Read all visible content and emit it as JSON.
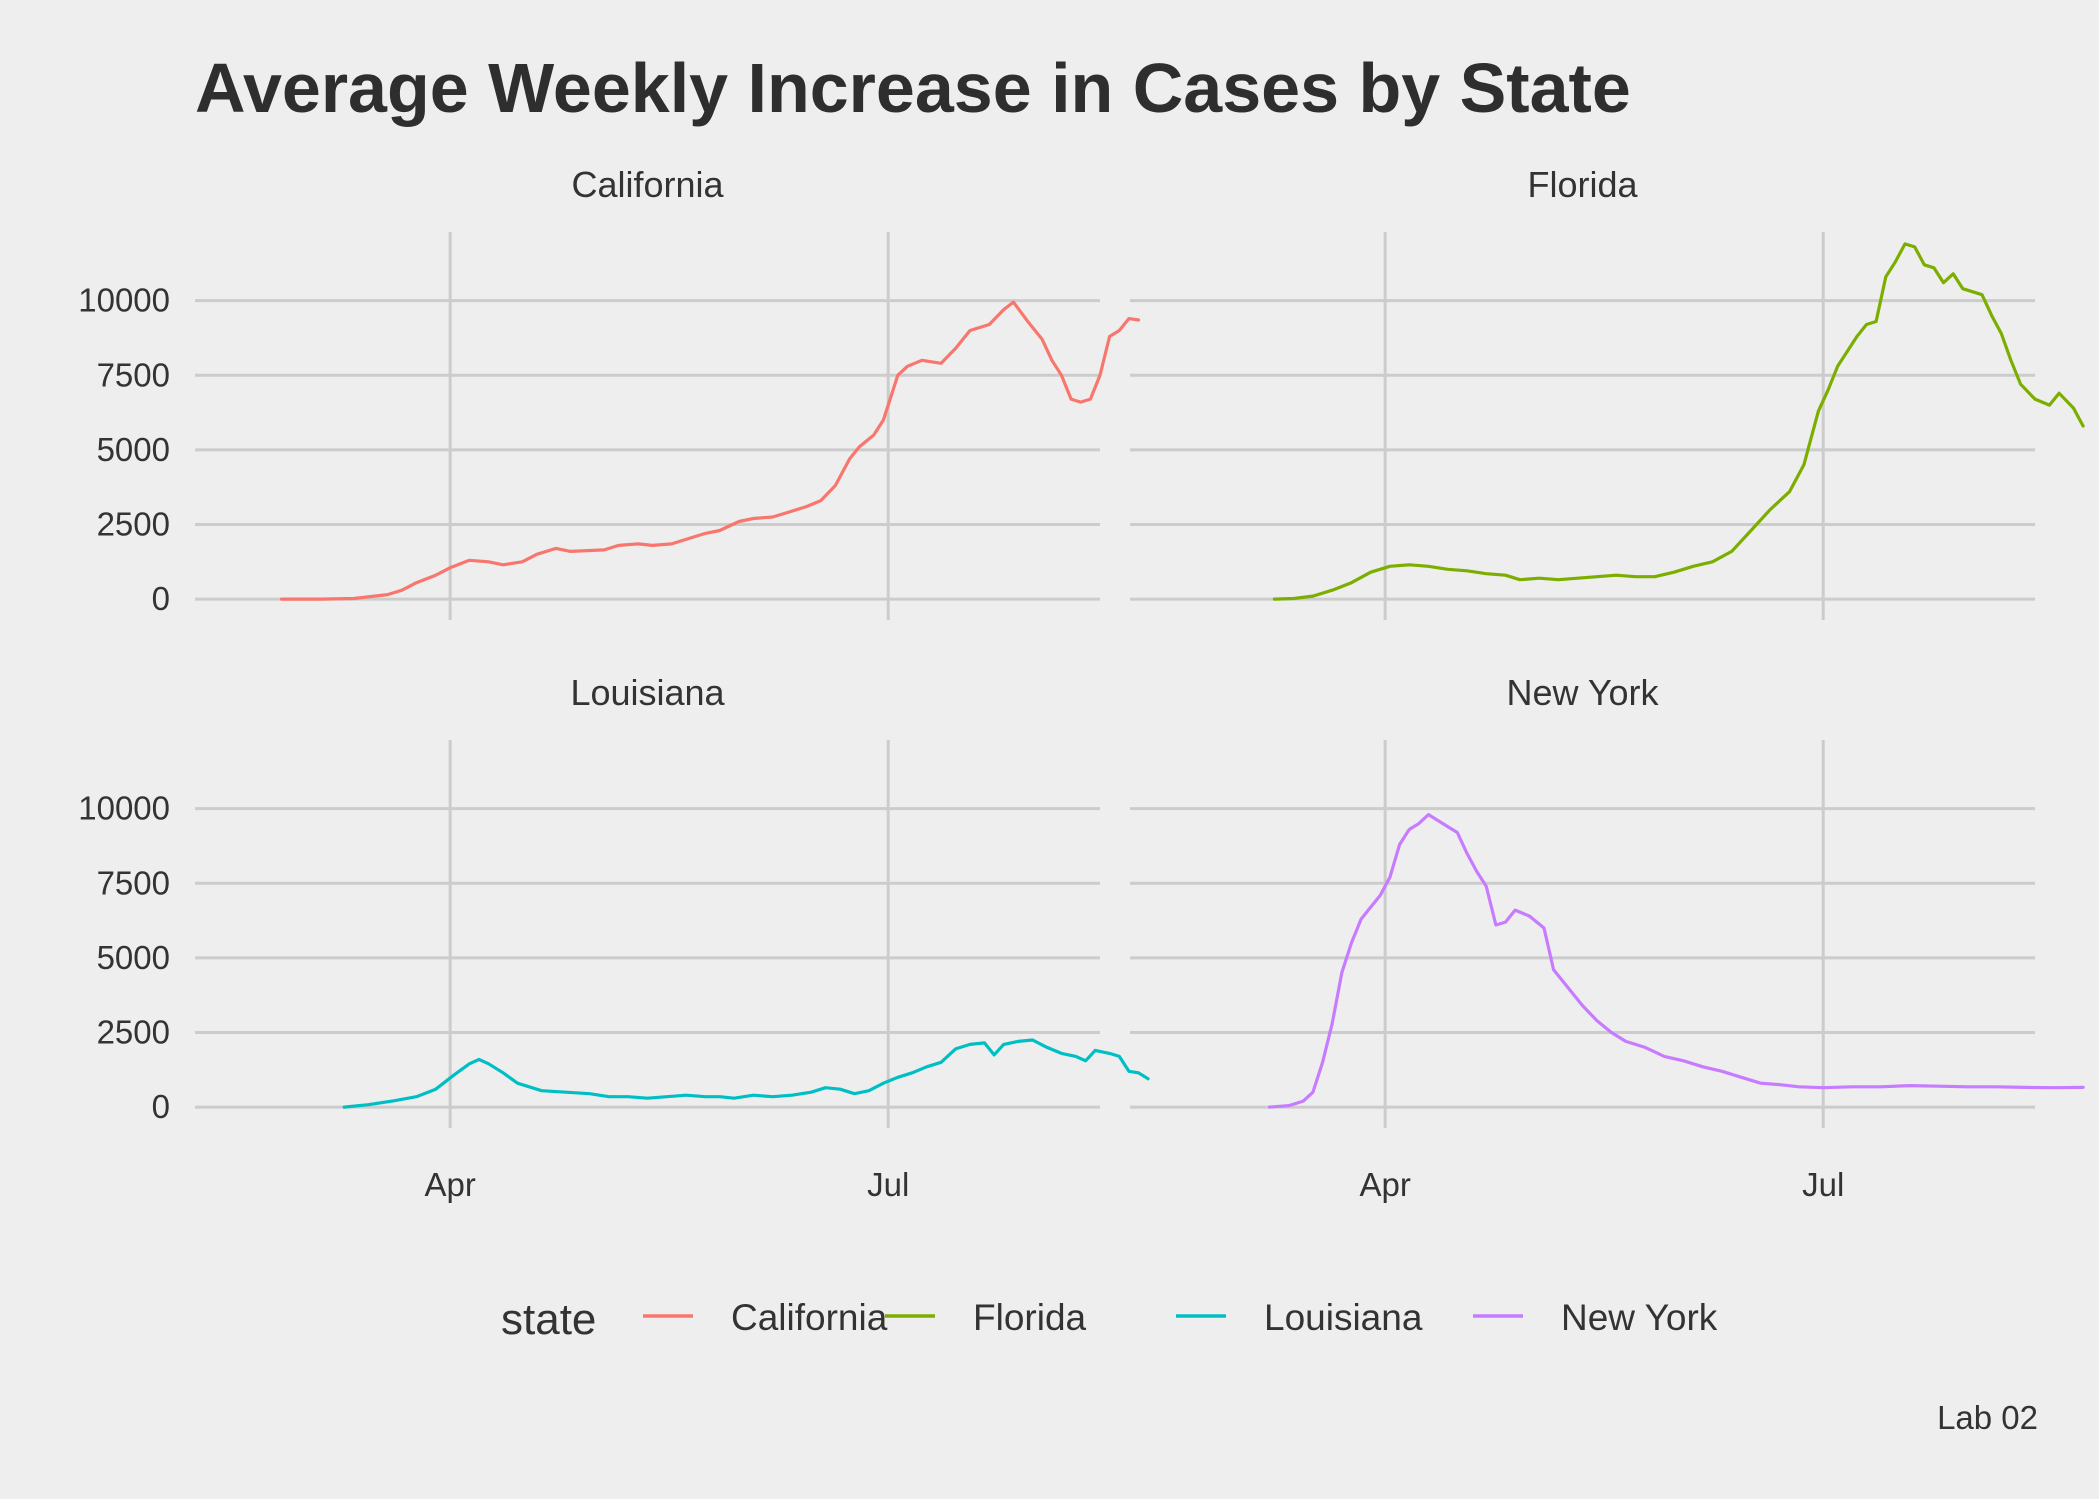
{
  "title": "Average Weekly Increase in Cases by State",
  "caption": "Lab 02",
  "legend": {
    "title": "state"
  },
  "chart_data": {
    "type": "line",
    "faceted_by": "state",
    "facet_layout": "2x2",
    "x_axis": {
      "type": "date",
      "range": [
        "2020-02-08",
        "2020-08-14"
      ],
      "ticks": [
        "2020-04-01",
        "2020-07-01"
      ],
      "tick_labels": [
        "Apr",
        "Jul"
      ]
    },
    "y_axis": {
      "range": [
        -700,
        12300
      ],
      "ticks": [
        0,
        2500,
        5000,
        7500,
        10000
      ],
      "tick_labels": [
        "0",
        "2500",
        "5000",
        "7500",
        "10000"
      ]
    },
    "grid": true,
    "legend_position": "bottom",
    "series": [
      {
        "name": "California",
        "color": "#f8766d",
        "points": [
          [
            "2020-02-26",
            0
          ],
          [
            "2020-03-05",
            0
          ],
          [
            "2020-03-12",
            20
          ],
          [
            "2020-03-19",
            150
          ],
          [
            "2020-03-22",
            300
          ],
          [
            "2020-03-25",
            550
          ],
          [
            "2020-03-29",
            800
          ],
          [
            "2020-04-01",
            1050
          ],
          [
            "2020-04-05",
            1300
          ],
          [
            "2020-04-09",
            1250
          ],
          [
            "2020-04-12",
            1150
          ],
          [
            "2020-04-16",
            1250
          ],
          [
            "2020-04-19",
            1500
          ],
          [
            "2020-04-23",
            1700
          ],
          [
            "2020-04-26",
            1600
          ],
          [
            "2020-05-03",
            1650
          ],
          [
            "2020-05-06",
            1800
          ],
          [
            "2020-05-10",
            1850
          ],
          [
            "2020-05-13",
            1800
          ],
          [
            "2020-05-17",
            1850
          ],
          [
            "2020-05-20",
            2000
          ],
          [
            "2020-05-24",
            2200
          ],
          [
            "2020-05-27",
            2300
          ],
          [
            "2020-05-31",
            2600
          ],
          [
            "2020-06-03",
            2700
          ],
          [
            "2020-06-07",
            2750
          ],
          [
            "2020-06-10",
            2900
          ],
          [
            "2020-06-14",
            3100
          ],
          [
            "2020-06-17",
            3300
          ],
          [
            "2020-06-20",
            3800
          ],
          [
            "2020-06-23",
            4700
          ],
          [
            "2020-06-25",
            5100
          ],
          [
            "2020-06-28",
            5500
          ],
          [
            "2020-06-30",
            6000
          ],
          [
            "2020-07-03",
            7500
          ],
          [
            "2020-07-05",
            7800
          ],
          [
            "2020-07-08",
            8000
          ],
          [
            "2020-07-12",
            7900
          ],
          [
            "2020-07-15",
            8400
          ],
          [
            "2020-07-18",
            9000
          ],
          [
            "2020-07-22",
            9200
          ],
          [
            "2020-07-25",
            9700
          ],
          [
            "2020-07-27",
            9950
          ],
          [
            "2020-07-30",
            9300
          ],
          [
            "2020-08-02",
            8700
          ],
          [
            "2020-08-04",
            8000
          ],
          [
            "2020-08-06",
            7500
          ],
          [
            "2020-08-08",
            6700
          ],
          [
            "2020-08-10",
            6600
          ],
          [
            "2020-08-12",
            6700
          ],
          [
            "2020-08-14",
            7500
          ],
          [
            "2020-08-16",
            8800
          ],
          [
            "2020-08-18",
            9000
          ],
          [
            "2020-08-20",
            9400
          ],
          [
            "2020-08-22",
            9350
          ]
        ]
      },
      {
        "name": "Florida",
        "color": "#7cae00",
        "points": [
          [
            "2020-03-09",
            0
          ],
          [
            "2020-03-13",
            20
          ],
          [
            "2020-03-17",
            100
          ],
          [
            "2020-03-21",
            300
          ],
          [
            "2020-03-25",
            550
          ],
          [
            "2020-03-29",
            900
          ],
          [
            "2020-04-02",
            1100
          ],
          [
            "2020-04-06",
            1150
          ],
          [
            "2020-04-10",
            1100
          ],
          [
            "2020-04-14",
            1000
          ],
          [
            "2020-04-18",
            950
          ],
          [
            "2020-04-22",
            850
          ],
          [
            "2020-04-26",
            800
          ],
          [
            "2020-04-29",
            650
          ],
          [
            "2020-05-03",
            700
          ],
          [
            "2020-05-07",
            650
          ],
          [
            "2020-05-11",
            700
          ],
          [
            "2020-05-15",
            750
          ],
          [
            "2020-05-19",
            800
          ],
          [
            "2020-05-23",
            750
          ],
          [
            "2020-05-27",
            750
          ],
          [
            "2020-05-31",
            900
          ],
          [
            "2020-06-04",
            1100
          ],
          [
            "2020-06-08",
            1250
          ],
          [
            "2020-06-12",
            1600
          ],
          [
            "2020-06-16",
            2300
          ],
          [
            "2020-06-20",
            3000
          ],
          [
            "2020-06-24",
            3600
          ],
          [
            "2020-06-27",
            4500
          ],
          [
            "2020-06-30",
            6300
          ],
          [
            "2020-07-02",
            7000
          ],
          [
            "2020-07-04",
            7800
          ],
          [
            "2020-07-06",
            8300
          ],
          [
            "2020-07-08",
            8800
          ],
          [
            "2020-07-10",
            9200
          ],
          [
            "2020-07-12",
            9300
          ],
          [
            "2020-07-14",
            10800
          ],
          [
            "2020-07-16",
            11300
          ],
          [
            "2020-07-18",
            11900
          ],
          [
            "2020-07-20",
            11800
          ],
          [
            "2020-07-22",
            11200
          ],
          [
            "2020-07-24",
            11100
          ],
          [
            "2020-07-26",
            10600
          ],
          [
            "2020-07-28",
            10900
          ],
          [
            "2020-07-30",
            10400
          ],
          [
            "2020-08-03",
            10200
          ],
          [
            "2020-08-05",
            9500
          ],
          [
            "2020-08-07",
            8900
          ],
          [
            "2020-08-09",
            8000
          ],
          [
            "2020-08-11",
            7200
          ],
          [
            "2020-08-14",
            6700
          ],
          [
            "2020-08-17",
            6500
          ],
          [
            "2020-08-19",
            6900
          ],
          [
            "2020-08-22",
            6400
          ],
          [
            "2020-08-24",
            5800
          ]
        ]
      },
      {
        "name": "Louisiana",
        "color": "#00bfc4",
        "points": [
          [
            "2020-03-10",
            0
          ],
          [
            "2020-03-15",
            80
          ],
          [
            "2020-03-20",
            200
          ],
          [
            "2020-03-25",
            350
          ],
          [
            "2020-03-29",
            600
          ],
          [
            "2020-04-02",
            1100
          ],
          [
            "2020-04-05",
            1450
          ],
          [
            "2020-04-07",
            1600
          ],
          [
            "2020-04-09",
            1450
          ],
          [
            "2020-04-12",
            1150
          ],
          [
            "2020-04-15",
            800
          ],
          [
            "2020-04-20",
            550
          ],
          [
            "2020-04-25",
            500
          ],
          [
            "2020-04-30",
            450
          ],
          [
            "2020-05-04",
            350
          ],
          [
            "2020-05-08",
            350
          ],
          [
            "2020-05-12",
            300
          ],
          [
            "2020-05-16",
            350
          ],
          [
            "2020-05-20",
            400
          ],
          [
            "2020-05-24",
            350
          ],
          [
            "2020-05-27",
            350
          ],
          [
            "2020-05-30",
            300
          ],
          [
            "2020-06-03",
            400
          ],
          [
            "2020-06-07",
            350
          ],
          [
            "2020-06-11",
            400
          ],
          [
            "2020-06-15",
            500
          ],
          [
            "2020-06-18",
            650
          ],
          [
            "2020-06-21",
            600
          ],
          [
            "2020-06-24",
            450
          ],
          [
            "2020-06-27",
            550
          ],
          [
            "2020-06-30",
            800
          ],
          [
            "2020-07-03",
            1000
          ],
          [
            "2020-07-06",
            1150
          ],
          [
            "2020-07-09",
            1350
          ],
          [
            "2020-07-12",
            1500
          ],
          [
            "2020-07-15",
            1950
          ],
          [
            "2020-07-18",
            2100
          ],
          [
            "2020-07-21",
            2150
          ],
          [
            "2020-07-23",
            1750
          ],
          [
            "2020-07-25",
            2100
          ],
          [
            "2020-07-28",
            2200
          ],
          [
            "2020-07-31",
            2250
          ],
          [
            "2020-08-03",
            2000
          ],
          [
            "2020-08-06",
            1800
          ],
          [
            "2020-08-09",
            1700
          ],
          [
            "2020-08-11",
            1550
          ],
          [
            "2020-08-13",
            1900
          ],
          [
            "2020-08-16",
            1800
          ],
          [
            "2020-08-18",
            1700
          ],
          [
            "2020-08-20",
            1200
          ],
          [
            "2020-08-22",
            1150
          ],
          [
            "2020-08-24",
            950
          ]
        ]
      },
      {
        "name": "New York",
        "color": "#c77cff",
        "points": [
          [
            "2020-03-08",
            0
          ],
          [
            "2020-03-12",
            50
          ],
          [
            "2020-03-15",
            200
          ],
          [
            "2020-03-17",
            500
          ],
          [
            "2020-03-19",
            1500
          ],
          [
            "2020-03-21",
            2800
          ],
          [
            "2020-03-23",
            4500
          ],
          [
            "2020-03-25",
            5500
          ],
          [
            "2020-03-27",
            6300
          ],
          [
            "2020-03-29",
            6700
          ],
          [
            "2020-03-31",
            7100
          ],
          [
            "2020-04-02",
            7700
          ],
          [
            "2020-04-04",
            8800
          ],
          [
            "2020-04-06",
            9300
          ],
          [
            "2020-04-08",
            9500
          ],
          [
            "2020-04-10",
            9800
          ],
          [
            "2020-04-12",
            9600
          ],
          [
            "2020-04-14",
            9400
          ],
          [
            "2020-04-16",
            9200
          ],
          [
            "2020-04-18",
            8500
          ],
          [
            "2020-04-20",
            7900
          ],
          [
            "2020-04-22",
            7400
          ],
          [
            "2020-04-24",
            6100
          ],
          [
            "2020-04-26",
            6200
          ],
          [
            "2020-04-28",
            6600
          ],
          [
            "2020-05-01",
            6400
          ],
          [
            "2020-05-04",
            6000
          ],
          [
            "2020-05-06",
            4600
          ],
          [
            "2020-05-09",
            4000
          ],
          [
            "2020-05-12",
            3400
          ],
          [
            "2020-05-15",
            2900
          ],
          [
            "2020-05-18",
            2500
          ],
          [
            "2020-05-21",
            2200
          ],
          [
            "2020-05-25",
            2000
          ],
          [
            "2020-05-29",
            1700
          ],
          [
            "2020-06-02",
            1550
          ],
          [
            "2020-06-06",
            1350
          ],
          [
            "2020-06-10",
            1200
          ],
          [
            "2020-06-14",
            1000
          ],
          [
            "2020-06-18",
            800
          ],
          [
            "2020-06-22",
            750
          ],
          [
            "2020-06-26",
            680
          ],
          [
            "2020-07-01",
            650
          ],
          [
            "2020-07-07",
            680
          ],
          [
            "2020-07-13",
            680
          ],
          [
            "2020-07-19",
            720
          ],
          [
            "2020-07-25",
            700
          ],
          [
            "2020-07-31",
            680
          ],
          [
            "2020-08-06",
            680
          ],
          [
            "2020-08-12",
            660
          ],
          [
            "2020-08-18",
            650
          ],
          [
            "2020-08-24",
            660
          ]
        ]
      }
    ]
  }
}
